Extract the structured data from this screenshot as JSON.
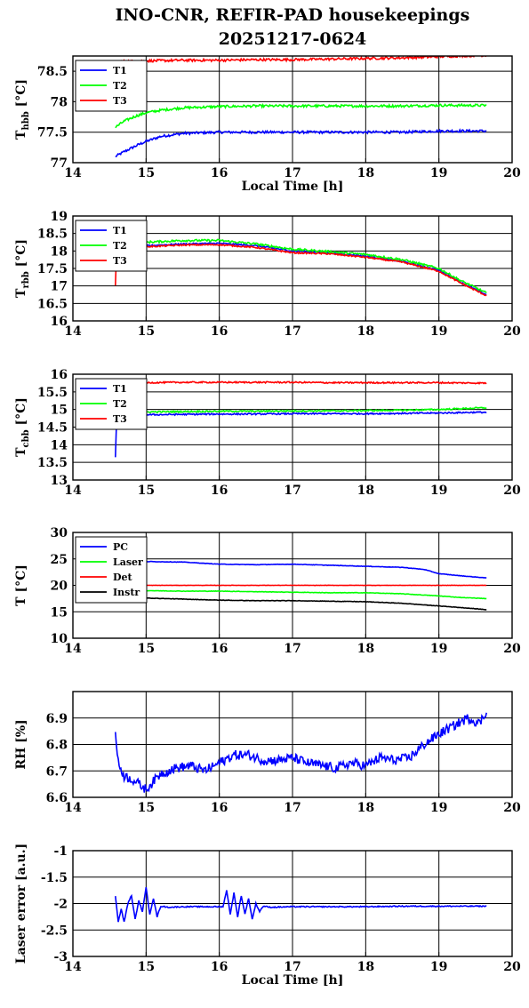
{
  "title_line1": "INO-CNR, REFIR-PAD housekeepings",
  "title_line2": "20251217-0624",
  "chart_data": [
    {
      "type": "line",
      "ylabel": "T_hbb [°C]",
      "ylabel_main": "T",
      "ylabel_sub": "hbb",
      "ylabel_unit": " [°C]",
      "xlabel": "Local Time [h]",
      "xlim": [
        14,
        20
      ],
      "ylim": [
        77,
        78.75
      ],
      "xticks": [
        "14",
        "15",
        "16",
        "17",
        "18",
        "19",
        "20"
      ],
      "yticks": [
        "77",
        "77.5",
        "78",
        "78.5"
      ],
      "yticks_values": [
        77,
        77.5,
        78,
        78.5
      ],
      "grid": true,
      "legend_position": "top-left",
      "series": [
        {
          "name": "T1",
          "color": "#0000ff",
          "x": [
            14.58,
            14.7,
            14.85,
            15.0,
            15.2,
            15.5,
            16.0,
            16.5,
            17.0,
            17.5,
            18.0,
            18.5,
            19.0,
            19.5,
            19.65
          ],
          "y": [
            77.1,
            77.18,
            77.27,
            77.35,
            77.43,
            77.48,
            77.5,
            77.5,
            77.5,
            77.5,
            77.5,
            77.5,
            77.52,
            77.52,
            77.52
          ],
          "noise": 0.02
        },
        {
          "name": "T2",
          "color": "#00ff00",
          "x": [
            14.58,
            14.7,
            14.85,
            15.0,
            15.2,
            15.5,
            16.0,
            16.5,
            17.0,
            17.5,
            18.0,
            18.5,
            19.0,
            19.5,
            19.65
          ],
          "y": [
            77.58,
            77.68,
            77.76,
            77.82,
            77.86,
            77.9,
            77.92,
            77.93,
            77.93,
            77.93,
            77.93,
            77.93,
            77.94,
            77.94,
            77.94
          ],
          "noise": 0.02
        },
        {
          "name": "T3",
          "color": "#ff0000",
          "x": [
            14.6,
            15.0,
            15.5,
            16.0,
            16.5,
            17.0,
            17.5,
            18.0,
            18.5,
            19.0,
            19.5,
            19.65
          ],
          "y": [
            78.66,
            78.67,
            78.68,
            78.68,
            78.69,
            78.69,
            78.7,
            78.71,
            78.72,
            78.74,
            78.76,
            78.76
          ],
          "noise": 0.02
        }
      ]
    },
    {
      "type": "line",
      "ylabel": "T_rbb [°C]",
      "ylabel_main": "T",
      "ylabel_sub": "rbb",
      "ylabel_unit": " [°C]",
      "xlabel": "",
      "xlim": [
        14,
        20
      ],
      "ylim": [
        16,
        19
      ],
      "xticks": [
        "14",
        "15",
        "16",
        "17",
        "18",
        "19",
        "20"
      ],
      "yticks": [
        "16",
        "16.5",
        "17",
        "17.5",
        "18",
        "18.5",
        "19"
      ],
      "yticks_values": [
        16,
        16.5,
        17,
        17.5,
        18,
        18.5,
        19
      ],
      "grid": true,
      "legend_position": "top-left",
      "series": [
        {
          "name": "T1",
          "color": "#0000ff",
          "x": [
            14.6,
            15.0,
            15.5,
            16.0,
            16.5,
            17.0,
            17.5,
            18.0,
            18.5,
            19.0,
            19.3,
            19.65
          ],
          "y": [
            18.1,
            18.15,
            18.2,
            18.22,
            18.15,
            18.0,
            17.95,
            17.85,
            17.7,
            17.45,
            17.1,
            16.75
          ],
          "noise": 0.02
        },
        {
          "name": "T2",
          "color": "#00ff00",
          "x": [
            14.6,
            15.0,
            15.5,
            16.0,
            16.5,
            17.0,
            17.5,
            18.0,
            18.5,
            19.0,
            19.3,
            19.65
          ],
          "y": [
            18.2,
            18.25,
            18.3,
            18.3,
            18.2,
            18.05,
            17.98,
            17.9,
            17.75,
            17.5,
            17.15,
            16.8
          ],
          "noise": 0.03
        },
        {
          "name": "T3",
          "color": "#ff0000",
          "x": [
            14.58,
            14.59,
            14.6,
            15.0,
            15.5,
            16.0,
            16.5,
            17.0,
            17.5,
            18.0,
            18.5,
            19.0,
            19.3,
            19.65
          ],
          "y": [
            17.0,
            17.6,
            18.08,
            18.12,
            18.17,
            18.18,
            18.1,
            17.95,
            17.92,
            17.82,
            17.68,
            17.42,
            17.08,
            16.72
          ],
          "noise": 0.02
        }
      ]
    },
    {
      "type": "line",
      "ylabel": "T_cbb [°C]",
      "ylabel_main": "T",
      "ylabel_sub": "cbb",
      "ylabel_unit": " [°C]",
      "xlabel": "",
      "xlim": [
        14,
        20
      ],
      "ylim": [
        13,
        16
      ],
      "xticks": [
        "14",
        "15",
        "16",
        "17",
        "18",
        "19",
        "20"
      ],
      "yticks": [
        "13",
        "13.5",
        "14",
        "14.5",
        "15",
        "15.5",
        "16"
      ],
      "yticks_values": [
        13,
        13.5,
        14,
        14.5,
        15,
        15.5,
        16
      ],
      "grid": true,
      "legend_position": "top-left",
      "series": [
        {
          "name": "T1",
          "color": "#0000ff",
          "x": [
            14.58,
            14.59,
            14.6,
            14.8,
            15.0,
            15.5,
            16.0,
            16.5,
            17.0,
            17.5,
            18.0,
            18.5,
            19.0,
            19.5,
            19.65
          ],
          "y": [
            13.65,
            14.3,
            14.85,
            14.85,
            14.85,
            14.86,
            14.87,
            14.87,
            14.88,
            14.88,
            14.88,
            14.89,
            14.9,
            14.92,
            14.92
          ],
          "noise": 0.02
        },
        {
          "name": "T2",
          "color": "#00ff00",
          "x": [
            14.6,
            15.0,
            15.5,
            16.0,
            16.5,
            17.0,
            17.5,
            18.0,
            18.5,
            19.0,
            19.5,
            19.65
          ],
          "y": [
            14.92,
            14.93,
            14.94,
            14.95,
            14.95,
            14.96,
            14.96,
            14.97,
            14.98,
            15.0,
            15.04,
            15.05
          ],
          "noise": 0.02
        },
        {
          "name": "T3",
          "color": "#ff0000",
          "x": [
            14.6,
            15.0,
            15.5,
            16.0,
            16.5,
            17.0,
            17.5,
            18.0,
            18.5,
            19.0,
            19.5,
            19.65
          ],
          "y": [
            15.75,
            15.76,
            15.77,
            15.77,
            15.77,
            15.77,
            15.76,
            15.76,
            15.76,
            15.76,
            15.75,
            15.75
          ],
          "noise": 0.02
        }
      ]
    },
    {
      "type": "line",
      "ylabel": "T [°C]",
      "ylabel_main": "T [°C]",
      "ylabel_sub": "",
      "ylabel_unit": "",
      "xlabel": "",
      "xlim": [
        14,
        20
      ],
      "ylim": [
        10,
        30
      ],
      "xticks": [
        "14",
        "15",
        "16",
        "17",
        "18",
        "19",
        "20"
      ],
      "yticks": [
        "10",
        "15",
        "20",
        "25",
        "30"
      ],
      "yticks_values": [
        10,
        15,
        20,
        25,
        30
      ],
      "grid": true,
      "legend_position": "top-left",
      "series": [
        {
          "name": "PC",
          "color": "#0000ff",
          "x": [
            14.6,
            15.0,
            15.5,
            16.0,
            16.5,
            17.0,
            17.5,
            18.0,
            18.5,
            18.8,
            19.0,
            19.3,
            19.65
          ],
          "y": [
            24.4,
            24.5,
            24.4,
            24.0,
            23.9,
            24.0,
            23.8,
            23.6,
            23.4,
            23.0,
            22.2,
            21.8,
            21.4
          ],
          "noise": 0.04
        },
        {
          "name": "Laser",
          "color": "#00ff00",
          "x": [
            14.6,
            15.0,
            15.5,
            16.0,
            16.5,
            17.0,
            17.5,
            18.0,
            18.5,
            19.0,
            19.3,
            19.65
          ],
          "y": [
            19.0,
            19.0,
            18.9,
            18.9,
            18.8,
            18.7,
            18.6,
            18.6,
            18.4,
            18.0,
            17.7,
            17.5
          ],
          "noise": 0.04
        },
        {
          "name": "Det",
          "color": "#ff0000",
          "x": [
            14.6,
            15.0,
            16.0,
            17.0,
            18.0,
            19.0,
            19.65
          ],
          "y": [
            20.0,
            20.0,
            20.0,
            20.0,
            20.0,
            20.0,
            20.0
          ],
          "noise": 0.03
        },
        {
          "name": "Instr",
          "color": "#000000",
          "x": [
            14.6,
            15.0,
            15.5,
            16.0,
            16.5,
            17.0,
            17.5,
            18.0,
            18.5,
            19.0,
            19.3,
            19.65
          ],
          "y": [
            17.9,
            17.6,
            17.4,
            17.2,
            17.1,
            17.1,
            17.0,
            16.9,
            16.6,
            16.1,
            15.8,
            15.4
          ],
          "noise": 0.04
        }
      ]
    },
    {
      "type": "line",
      "ylabel": "RH [%]",
      "ylabel_main": "RH [%]",
      "ylabel_sub": "",
      "ylabel_unit": "",
      "xlabel": "",
      "xlim": [
        14,
        20
      ],
      "ylim": [
        6.6,
        7.0
      ],
      "xticks": [
        "14",
        "15",
        "16",
        "17",
        "18",
        "19",
        "20"
      ],
      "yticks": [
        "6.6",
        "6.7",
        "6.8",
        "6.9"
      ],
      "yticks_values": [
        6.6,
        6.7,
        6.8,
        6.9
      ],
      "grid": true,
      "legend_position": "none",
      "series": [
        {
          "name": "",
          "color": "#0000ff",
          "x": [
            14.58,
            14.62,
            14.7,
            14.8,
            14.9,
            15.0,
            15.1,
            15.2,
            15.4,
            15.6,
            15.8,
            16.0,
            16.2,
            16.4,
            16.6,
            16.8,
            17.0,
            17.2,
            17.4,
            17.6,
            17.8,
            18.0,
            18.2,
            18.4,
            18.6,
            18.8,
            19.0,
            19.2,
            19.4,
            19.55,
            19.65
          ],
          "y": [
            6.84,
            6.73,
            6.68,
            6.67,
            6.65,
            6.63,
            6.66,
            6.69,
            6.71,
            6.72,
            6.7,
            6.73,
            6.76,
            6.76,
            6.74,
            6.74,
            6.75,
            6.73,
            6.72,
            6.71,
            6.73,
            6.72,
            6.75,
            6.74,
            6.75,
            6.8,
            6.84,
            6.87,
            6.9,
            6.88,
            6.92
          ],
          "noise": 0.018
        }
      ]
    },
    {
      "type": "line",
      "ylabel": "Laser error [a.u.]",
      "ylabel_main": "Laser error [a.u.]",
      "ylabel_sub": "",
      "ylabel_unit": "",
      "xlabel": "Local Time [h]",
      "xlim": [
        14,
        20
      ],
      "ylim": [
        -3,
        -1
      ],
      "xticks": [
        "14",
        "15",
        "16",
        "17",
        "18",
        "19",
        "20"
      ],
      "yticks": [
        "-3",
        "-2.5",
        "-2",
        "-1.5",
        "-1"
      ],
      "yticks_values": [
        -3,
        -2.5,
        -2,
        -1.5,
        -1
      ],
      "grid": true,
      "legend_position": "none",
      "series": [
        {
          "name": "",
          "color": "#0000ff",
          "x": [
            14.58,
            14.62,
            14.66,
            14.7,
            14.75,
            14.8,
            14.85,
            14.9,
            14.95,
            15.0,
            15.05,
            15.1,
            15.15,
            15.2,
            15.3,
            15.5,
            15.8,
            16.05,
            16.1,
            16.15,
            16.2,
            16.25,
            16.3,
            16.35,
            16.4,
            16.45,
            16.5,
            16.55,
            16.6,
            16.7,
            17.0,
            17.5,
            18.0,
            18.5,
            19.0,
            19.5,
            19.65
          ],
          "y": [
            -1.85,
            -2.35,
            -2.1,
            -2.35,
            -2.0,
            -1.85,
            -2.3,
            -1.95,
            -2.15,
            -1.7,
            -2.2,
            -1.9,
            -2.25,
            -2.05,
            -2.07,
            -2.06,
            -2.06,
            -2.06,
            -1.75,
            -2.2,
            -1.8,
            -2.25,
            -1.85,
            -2.2,
            -1.9,
            -2.3,
            -2.0,
            -2.15,
            -2.05,
            -2.07,
            -2.06,
            -2.06,
            -2.06,
            -2.05,
            -2.05,
            -2.05,
            -2.05
          ],
          "noise": 0.01
        }
      ]
    }
  ]
}
